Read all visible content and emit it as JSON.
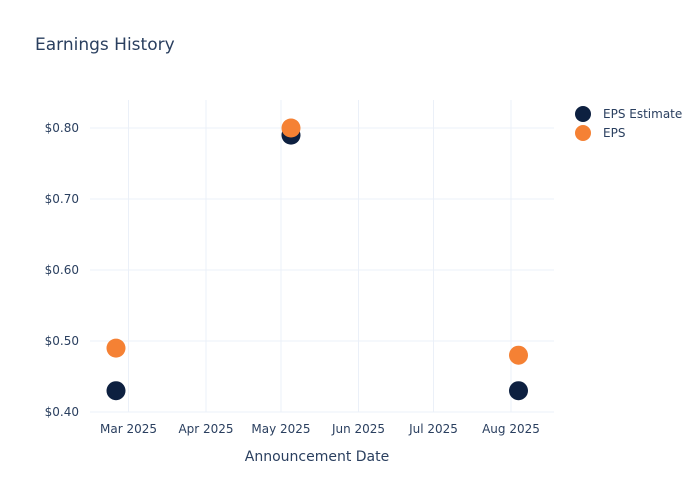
{
  "chart_data": {
    "type": "scatter",
    "title": "Earnings History",
    "xlabel": "Announcement Date",
    "ylabel": "",
    "x_tick_labels": [
      "Mar 2025",
      "Apr 2025",
      "May 2025",
      "Jun 2025",
      "Jul 2025",
      "Aug 2025"
    ],
    "y_tick_labels": [
      "$0.40",
      "$0.50",
      "$0.60",
      "$0.70",
      "$0.80"
    ],
    "y_ticks": [
      0.4,
      0.5,
      0.6,
      0.7,
      0.8
    ],
    "ylim": [
      0.4,
      0.84
    ],
    "xlim": [
      "2025-02-14",
      "2025-08-20"
    ],
    "grid": true,
    "legend_position": "top-right",
    "x": [
      "2025-02-24",
      "2025-05-05",
      "2025-08-04"
    ],
    "series": [
      {
        "name": "EPS Estimate",
        "color": "#0d2040",
        "values": [
          0.43,
          0.79,
          0.43
        ]
      },
      {
        "name": "EPS",
        "color": "#f58134",
        "values": [
          0.49,
          0.8,
          0.48
        ]
      }
    ]
  },
  "legend": {
    "items": [
      {
        "label": "EPS Estimate",
        "color": "#0d2040"
      },
      {
        "label": "EPS",
        "color": "#f58134"
      }
    ]
  }
}
